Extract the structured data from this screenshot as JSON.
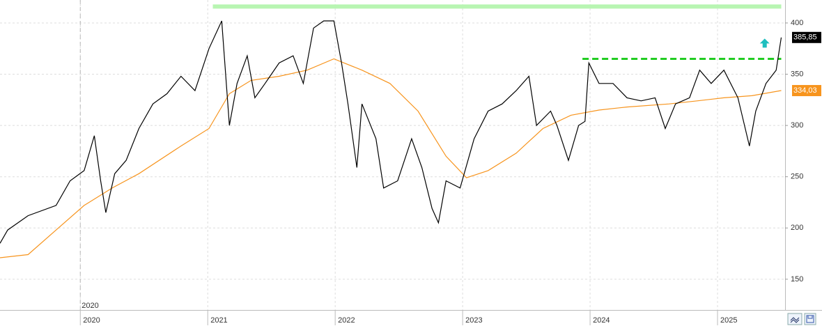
{
  "chart_data": {
    "type": "line",
    "series": [
      {
        "color": "#000000",
        "x": [
          2019.37,
          2019.43,
          2019.59,
          2019.81,
          2019.92,
          2020.03,
          2020.11,
          2020.16,
          2020.2,
          2020.27,
          2020.36,
          2020.46,
          2020.57,
          2020.68,
          2020.79,
          2020.9,
          2021.01,
          2021.11,
          2021.17,
          2021.23,
          2021.31,
          2021.37,
          2021.45,
          2021.56,
          2021.67,
          2021.75,
          2021.83,
          2021.91,
          2021.99,
          2022.05,
          2022.1,
          2022.17,
          2022.21,
          2022.32,
          2022.38,
          2022.49,
          2022.6,
          2022.68,
          2022.76,
          2022.81,
          2022.87,
          2022.98,
          2023.09,
          2023.2,
          2023.31,
          2023.42,
          2023.52,
          2023.58,
          2023.69,
          2023.74,
          2023.83,
          2023.91,
          2023.96,
          2023.99,
          2024.07,
          2024.18,
          2024.29,
          2024.4,
          2024.51,
          2024.59,
          2024.67,
          2024.78,
          2024.86,
          2024.95,
          2025.05,
          2025.16,
          2025.25,
          2025.3,
          2025.38,
          2025.46,
          2025.5
        ],
        "values": [
          185,
          198,
          212,
          222,
          246,
          256,
          290,
          246,
          215,
          253,
          266,
          297,
          321,
          331,
          348,
          334,
          375,
          402,
          300,
          341,
          368,
          327,
          341,
          361,
          368,
          341,
          395,
          402,
          402,
          361,
          321,
          259,
          321,
          287,
          239,
          246,
          287,
          259,
          219,
          205,
          246,
          239,
          287,
          314,
          321,
          334,
          348,
          300,
          314,
          300,
          266,
          300,
          304,
          361,
          341,
          341,
          327,
          324,
          327,
          297,
          321,
          327,
          354,
          341,
          354,
          327,
          280,
          314,
          341,
          354,
          385.85
        ]
      },
      {
        "color": "#f7941d",
        "x": [
          2019.37,
          2019.59,
          2019.81,
          2020.03,
          2020.25,
          2020.46,
          2020.79,
          2021.01,
          2021.17,
          2021.34,
          2021.56,
          2021.78,
          2021.99,
          2022.21,
          2022.43,
          2022.65,
          2022.87,
          2023.03,
          2023.2,
          2023.42,
          2023.63,
          2023.85,
          2024.07,
          2024.29,
          2024.62,
          2024.84,
          2025.05,
          2025.27,
          2025.5
        ],
        "values": [
          171,
          174,
          198,
          222,
          239,
          253,
          280,
          297,
          331,
          344,
          348,
          354,
          365,
          354,
          341,
          314,
          270,
          249,
          256,
          273,
          297,
          310,
          315,
          318,
          321,
          324,
          327,
          329,
          334.03
        ]
      }
    ],
    "price_tags": [
      {
        "value": 385.85,
        "label": "385,85",
        "color": "#000000"
      },
      {
        "value": 334.03,
        "label": "334,03",
        "color": "#f7941d"
      }
    ],
    "reference_lines": [
      {
        "value": 416,
        "from": 2021.04,
        "to": 2025.5,
        "color": "#b8f5b2",
        "dashed": false
      },
      {
        "value": 365,
        "from": 2023.94,
        "to": 2025.5,
        "color": "#22cc22",
        "dashed": true
      }
    ],
    "arrow": {
      "x": 2025.37,
      "y": 380,
      "color": "#1fbfbf"
    },
    "marker_label": {
      "x": 2020,
      "label": "2020"
    },
    "xlim": [
      2019.37,
      2025.53
    ],
    "xticks": [
      2020,
      2021,
      2022,
      2023,
      2024,
      2025
    ],
    "ylim": [
      120,
      422.4
    ],
    "yticks": [
      150,
      200,
      250,
      300,
      350,
      400
    ],
    "grid": true
  }
}
